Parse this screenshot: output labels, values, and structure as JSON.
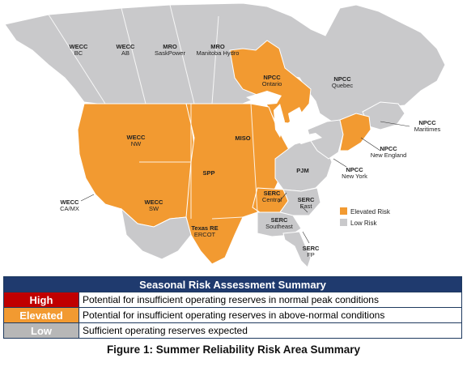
{
  "colors": {
    "elevated": "#f29a31",
    "low": "#c9c9cb",
    "high": "#c00000",
    "water": "#ffffff",
    "border": "#ffffff",
    "table_header": "#1f3a6e"
  },
  "map": {
    "regions": [
      {
        "id": "wecc-bc",
        "l1": "WECC",
        "l2": "BC",
        "risk": "low"
      },
      {
        "id": "wecc-ab",
        "l1": "WECC",
        "l2": "AB",
        "risk": "low"
      },
      {
        "id": "mro-saskpower",
        "l1": "MRO",
        "l2": "SaskPower",
        "risk": "low"
      },
      {
        "id": "mro-manitoba",
        "l1": "MRO",
        "l2": "Manitoba Hydro",
        "risk": "low"
      },
      {
        "id": "npcc-ontario",
        "l1": "NPCC",
        "l2": "Ontario",
        "risk": "elevated"
      },
      {
        "id": "npcc-quebec",
        "l1": "NPCC",
        "l2": "Quebec",
        "risk": "low"
      },
      {
        "id": "npcc-maritimes",
        "l1": "NPCC",
        "l2": "Maritimes",
        "risk": "low"
      },
      {
        "id": "npcc-new-england",
        "l1": "NPCC",
        "l2": "New England",
        "risk": "elevated"
      },
      {
        "id": "npcc-new-york",
        "l1": "NPCC",
        "l2": "New York",
        "risk": "low"
      },
      {
        "id": "wecc-nw",
        "l1": "WECC",
        "l2": "NW",
        "risk": "elevated"
      },
      {
        "id": "wecc-camx",
        "l1": "WECC",
        "l2": "CA/MX",
        "risk": "elevated"
      },
      {
        "id": "wecc-sw",
        "l1": "WECC",
        "l2": "SW",
        "risk": "elevated"
      },
      {
        "id": "spp",
        "l1": "SPP",
        "l2": "",
        "risk": "elevated"
      },
      {
        "id": "miso",
        "l1": "MISO",
        "l2": "",
        "risk": "elevated"
      },
      {
        "id": "pjm",
        "l1": "PJM",
        "l2": "",
        "risk": "low"
      },
      {
        "id": "serc-central",
        "l1": "SERC",
        "l2": "Central",
        "risk": "elevated"
      },
      {
        "id": "serc-east",
        "l1": "SERC",
        "l2": "East",
        "risk": "low"
      },
      {
        "id": "serc-southeast",
        "l1": "SERC",
        "l2": "Southeast",
        "risk": "low"
      },
      {
        "id": "serc-fp",
        "l1": "SERC",
        "l2": "FP",
        "risk": "low"
      },
      {
        "id": "texas-re",
        "l1": "Texas RE",
        "l2": "ERCOT",
        "risk": "elevated"
      }
    ],
    "legend": [
      {
        "label": "Elevated Risk",
        "risk": "elevated"
      },
      {
        "label": "Low Risk",
        "risk": "low"
      }
    ]
  },
  "summary": {
    "title": "Seasonal Risk Assessment Summary",
    "rows": [
      {
        "level": "High",
        "description": "Potential for insufficient operating reserves in normal peak conditions",
        "color": "#c00000"
      },
      {
        "level": "Elevated",
        "description": "Potential for insufficient operating reserves in above-normal conditions",
        "color": "#f29a31"
      },
      {
        "level": "Low",
        "description": "Sufficient operating reserves expected",
        "color": "#b7b7b7"
      }
    ]
  },
  "caption": "Figure 1: Summer Reliability Risk Area Summary"
}
